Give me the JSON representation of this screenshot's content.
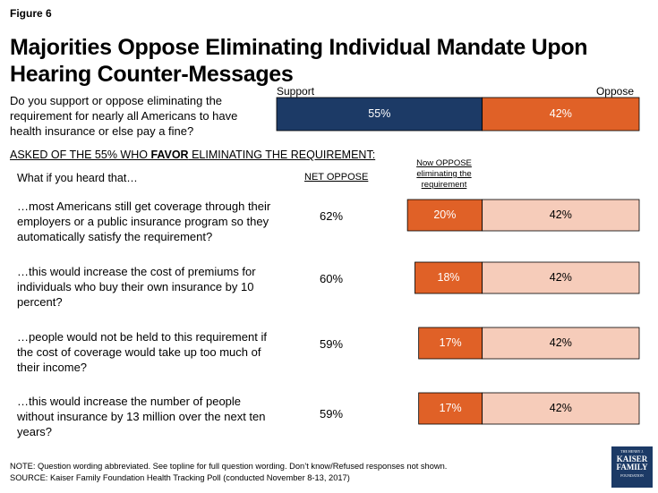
{
  "figure_label": "Figure 6",
  "title": "Majorities Oppose Eliminating Individual Mandate Upon Hearing Counter-Messages",
  "colors": {
    "support": "#1c3a66",
    "oppose": "#e06127",
    "oppose_light": "#f6ccba",
    "stroke": "#000000"
  },
  "chart_data": [
    {
      "type": "bar",
      "subtype": "stacked-horizontal",
      "question": "Do you support or oppose eliminating the requirement for nearly all Americans to have health insurance or else pay a fine?",
      "legend": {
        "left": "Support",
        "right": "Oppose",
        "placement": "top"
      },
      "series": [
        {
          "name": "Support",
          "values": [
            55
          ],
          "labels": [
            "55%"
          ]
        },
        {
          "name": "Oppose",
          "values": [
            42
          ],
          "labels": [
            "42%"
          ]
        }
      ]
    },
    {
      "type": "bar",
      "subtype": "stacked-horizontal",
      "section_header_prefix": "ASKED OF THE 55% WHO ",
      "section_header_bold": "FAVOR",
      "section_header_suffix": " ELIMINATING THE REQUIREMENT:",
      "row_header": "What if you heard that…",
      "net_header": "NET OPPOSE",
      "segment_header": "Now OPPOSE eliminating the requirement",
      "categories": [
        "…most Americans still get coverage through their employers or a public insurance program so they automatically satisfy the requirement?",
        "…this would increase the cost of premiums for individuals who buy their own insurance by 10 percent?",
        "…people would not be held to this requirement if the cost of coverage would take up too much of their income?",
        "…this would increase the number of people without insurance by 13 million over the next ten years?"
      ],
      "net_oppose": [
        "62%",
        "60%",
        "59%",
        "59%"
      ],
      "series": [
        {
          "name": "Now OPPOSE eliminating the requirement",
          "values": [
            20,
            18,
            17,
            17
          ],
          "labels": [
            "20%",
            "18%",
            "17%",
            "17%"
          ]
        },
        {
          "name": "",
          "values": [
            42,
            42,
            42,
            42
          ],
          "labels": [
            "42%",
            "42%",
            "42%",
            "42%"
          ]
        }
      ]
    }
  ],
  "notes": {
    "note": "NOTE: Question wording abbreviated. See topline for full question wording. Don’t know/Refused responses not shown.",
    "source": "SOURCE: Kaiser Family Foundation Health Tracking Poll (conducted November 8-13, 2017)"
  },
  "logo": {
    "line1": "THE HENRY J.",
    "line2a": "KAISER",
    "line2b": "FAMILY",
    "line3": "FOUNDATION"
  }
}
